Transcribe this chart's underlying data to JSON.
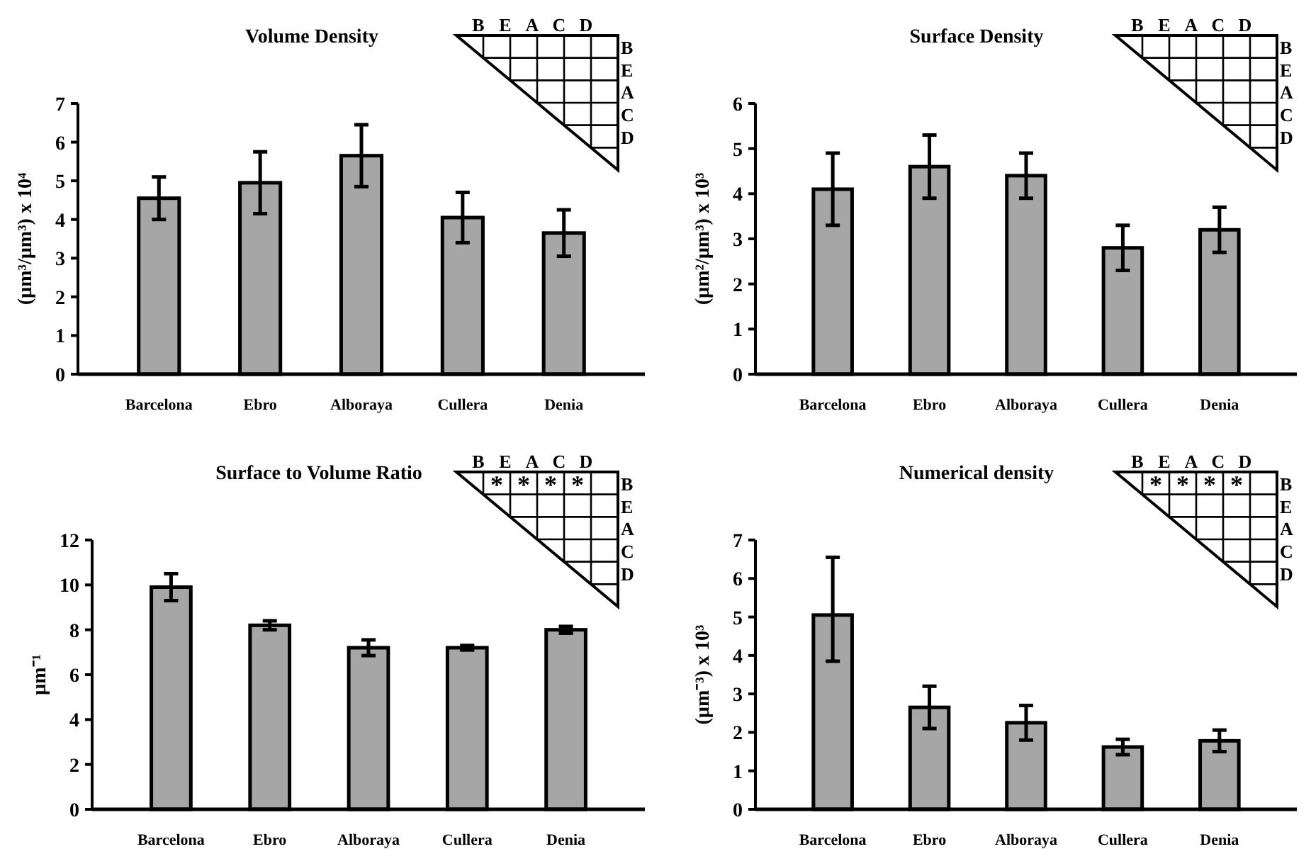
{
  "chart_data": [
    {
      "type": "bar",
      "title": "Volume Density",
      "ylabel": "(µm³/µm³) x 10⁴",
      "categories": [
        "Barcelona",
        "Ebro",
        "Alboraya",
        "Cullera",
        "Denia"
      ],
      "color": "#a6a6a6",
      "values": [
        4.55,
        4.95,
        5.65,
        4.05,
        3.65
      ],
      "errors": [
        0.55,
        0.8,
        0.8,
        0.65,
        0.6
      ],
      "ylim": [
        0,
        7
      ],
      "yticks": [
        0,
        1,
        2,
        3,
        4,
        5,
        6,
        7
      ],
      "annotations": [
        "B",
        "E",
        "A",
        "C",
        "D"
      ]
    },
    {
      "type": "bar",
      "title": "Surface Density",
      "ylabel": "(µm²/µm³) x 10³",
      "categories": [
        "Barcelona",
        "Ebro",
        "Alboraya",
        "Cullera",
        "Denia"
      ],
      "color": "#a6a6a6",
      "values": [
        4.1,
        4.6,
        4.4,
        2.8,
        3.2
      ],
      "errors": [
        0.8,
        0.7,
        0.5,
        0.5,
        0.5
      ],
      "ylim": [
        0,
        6
      ],
      "yticks": [
        0,
        1,
        2,
        3,
        4,
        5,
        6
      ],
      "annotations": [
        "B",
        "E",
        "A",
        "C",
        "D"
      ]
    },
    {
      "type": "bar",
      "title": "Surface to Volume Ratio",
      "ylabel": "µm⁻¹",
      "categories": [
        "Barcelona",
        "Ebro",
        "Alboraya",
        "Cullera",
        "Denia"
      ],
      "color": "#a6a6a6",
      "values": [
        9.9,
        8.2,
        7.2,
        7.2,
        8.0
      ],
      "errors": [
        0.6,
        0.2,
        0.35,
        0.1,
        0.15
      ],
      "ylim": [
        0,
        12
      ],
      "yticks": [
        0,
        2,
        4,
        6,
        8,
        10,
        12
      ],
      "annotations": [
        "B",
        "E",
        "A",
        "C",
        "D",
        "*",
        "*",
        "*",
        "*"
      ]
    },
    {
      "type": "bar",
      "title": "Numerical density",
      "ylabel": "(µm⁻³) x 10³",
      "categories": [
        "Barcelona",
        "Ebro",
        "Alboraya",
        "Cullera",
        "Denia"
      ],
      "color": "#a6a6a6",
      "values": [
        5.05,
        2.65,
        2.25,
        1.62,
        1.78
      ],
      "errors": [
        [
          3.85,
          6.55
        ],
        0.55,
        0.45,
        0.2,
        0.28
      ],
      "ylim": [
        0,
        7
      ],
      "yticks": [
        0,
        1,
        2,
        3,
        4,
        5,
        6,
        7
      ],
      "annotations": [
        "B",
        "E",
        "A",
        "C",
        "D",
        "*",
        "*",
        "*",
        "*"
      ]
    }
  ]
}
